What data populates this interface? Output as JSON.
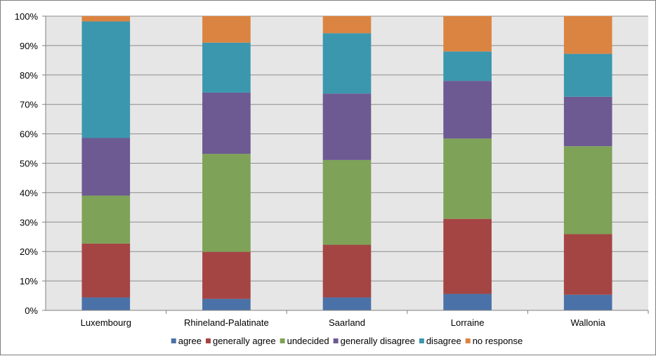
{
  "chart_data": {
    "type": "bar",
    "stacked": "percent",
    "categories": [
      "Luxembourg",
      "Rhineland-Palatinate",
      "Saarland",
      "Lorraine",
      "Wallonia"
    ],
    "series": [
      {
        "name": "agree",
        "color": "#4a72a8",
        "values": [
          4.4,
          3.9,
          4.4,
          5.6,
          5.3
        ]
      },
      {
        "name": "generally agree",
        "color": "#a44544",
        "values": [
          18.3,
          16.0,
          17.9,
          25.5,
          20.6
        ]
      },
      {
        "name": "undecided",
        "color": "#7ea257",
        "values": [
          16.3,
          33.3,
          28.8,
          27.3,
          29.9
        ]
      },
      {
        "name": "generally disagree",
        "color": "#6d5a92",
        "values": [
          19.6,
          20.8,
          22.6,
          19.6,
          16.8
        ]
      },
      {
        "name": "disagree",
        "color": "#3b97ae",
        "values": [
          39.6,
          17.0,
          20.5,
          10.0,
          14.6
        ]
      },
      {
        "name": "no response",
        "color": "#db8441",
        "values": [
          1.8,
          9.0,
          5.8,
          12.0,
          12.8
        ]
      }
    ],
    "yticks": [
      "0%",
      "10%",
      "20%",
      "30%",
      "40%",
      "50%",
      "60%",
      "70%",
      "80%",
      "90%",
      "100%"
    ],
    "ylim": [
      0,
      100
    ],
    "grid": true,
    "legend_position": "bottom",
    "plot_background": "#e6e6e6",
    "title": "",
    "xlabel": "",
    "ylabel": ""
  }
}
